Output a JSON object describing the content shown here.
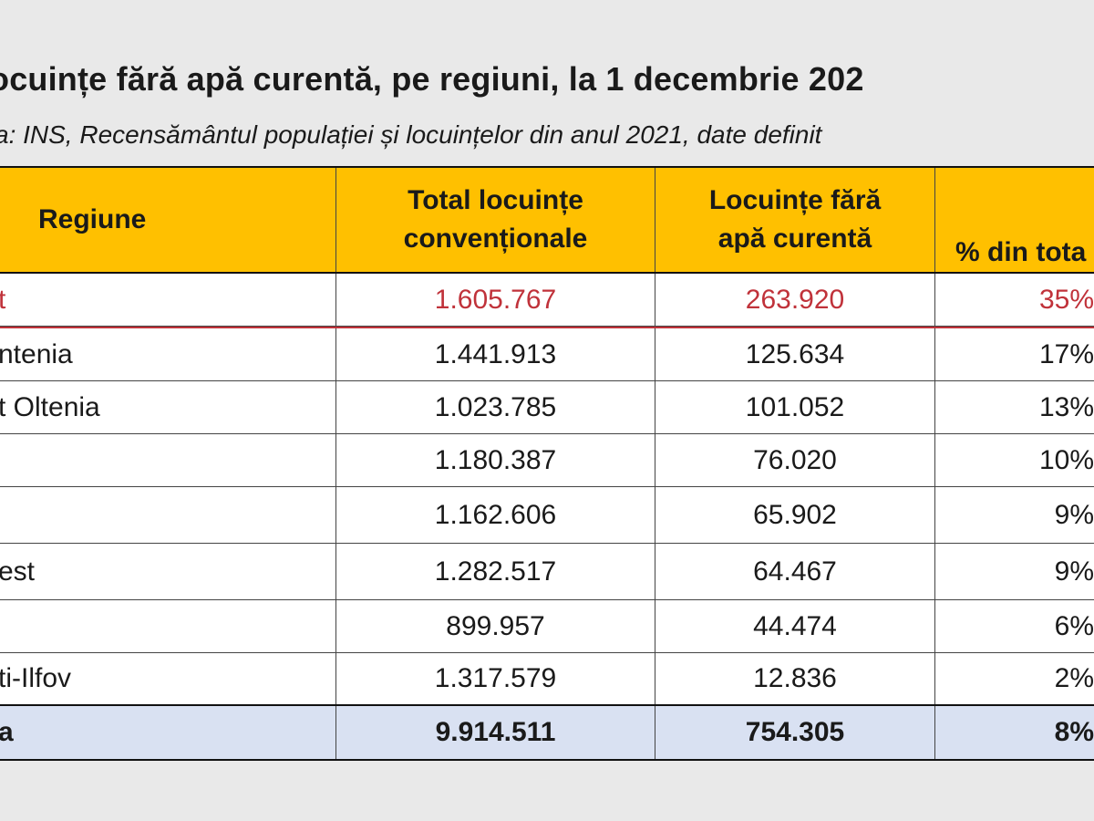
{
  "title": "ocuințe fără apă curentă, pe regiuni, la 1 decembrie 202",
  "subtitle": "a: INS, Recensământul populației și locuințelor din anul 2021, date definit",
  "table": {
    "headers": {
      "region": "Regiune",
      "total_line1": "Total locuințe",
      "total_line2": "convenționale",
      "without_line1": "Locuințe fără",
      "without_line2": "apă curentă",
      "percent": "% din tota"
    },
    "rows": [
      {
        "region": "t",
        "total": "1.605.767",
        "without": "263.920",
        "percent": "35%"
      },
      {
        "region": "ntenia",
        "total": "1.441.913",
        "without": "125.634",
        "percent": "17%"
      },
      {
        "region": "t Oltenia",
        "total": "1.023.785",
        "without": "101.052",
        "percent": "13%"
      },
      {
        "region": "",
        "total": "1.180.387",
        "without": "76.020",
        "percent": "10%"
      },
      {
        "region": "",
        "total": "1.162.606",
        "without": "65.902",
        "percent": "9%"
      },
      {
        "region": "est",
        "total": "1.282.517",
        "without": "64.467",
        "percent": "9%"
      },
      {
        "region": "",
        "total": "899.957",
        "without": "44.474",
        "percent": "6%"
      },
      {
        "region": "ti-Ilfov",
        "total": "1.317.579",
        "without": "12.836",
        "percent": "2%"
      }
    ],
    "total_row": {
      "region": "a",
      "total": "9.914.511",
      "without": "754.305",
      "percent": "8%"
    }
  },
  "colors": {
    "header_bg": "#ffc000",
    "highlight_text": "#c0323a",
    "total_row_bg": "#d9e1f2",
    "page_bg": "#e9e9e9"
  }
}
